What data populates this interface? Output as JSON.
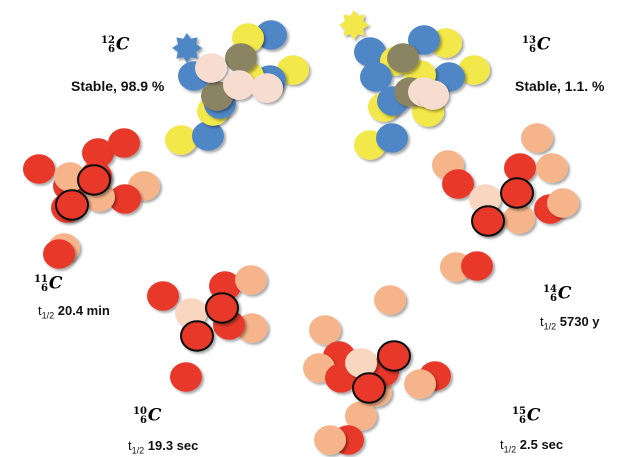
{
  "isotopes": [
    {
      "id": "c12",
      "mass": "12",
      "atomic": "6",
      "symbol": "C",
      "info": "Stable, 98.9 %",
      "stable": true
    },
    {
      "id": "c13",
      "mass": "13",
      "atomic": "6",
      "symbol": "C",
      "info": "Stable, 1.1. %",
      "stable": true
    },
    {
      "id": "c11",
      "mass": "11",
      "atomic": "6",
      "symbol": "C",
      "half_life_prefix": "t",
      "half_life_sub": "1/2",
      "half_life": "20.4 min"
    },
    {
      "id": "c14",
      "mass": "14",
      "atomic": "6",
      "symbol": "C",
      "half_life_prefix": "t",
      "half_life_sub": "1/2",
      "half_life": "5730 y"
    },
    {
      "id": "c10",
      "mass": "10",
      "atomic": "6",
      "symbol": "C",
      "half_life_prefix": "t",
      "half_life_sub": "1/2",
      "half_life": "19.3 sec"
    },
    {
      "id": "c15",
      "mass": "15",
      "atomic": "6",
      "symbol": "C",
      "half_life_prefix": "t",
      "half_life_sub": "1/2",
      "half_life": "2.5 sec"
    }
  ],
  "colors": {
    "stable_proton": "#f2e84a",
    "stable_neutron": "#4f86c6",
    "stable_core_dark": "#8a8462",
    "stable_core_light": "#f6ddd0",
    "unstable_red": "#e8372b",
    "unstable_peach": "#f5b48a",
    "unstable_light": "#f9d6bf",
    "outline": "#111111"
  }
}
